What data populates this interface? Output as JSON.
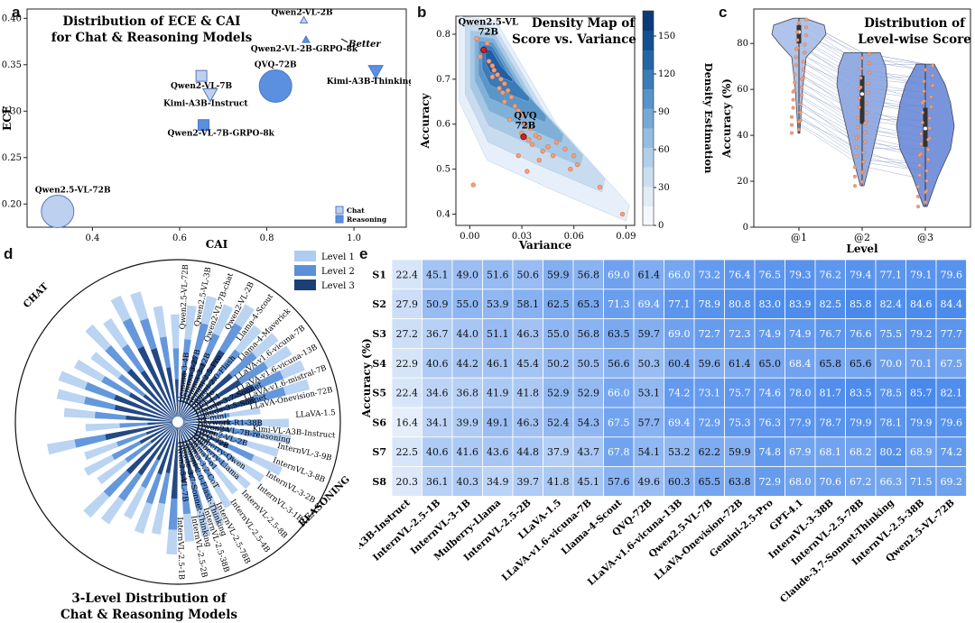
{
  "panel_labels": {
    "a": "a",
    "b": "b",
    "c": "c",
    "d": "d",
    "e": "e"
  },
  "chart_data": [
    {
      "id": "a",
      "type": "scatter",
      "title": "Distribution of ECE & CAI",
      "subtitle": "for Chat & Reasoning Models",
      "xlabel": "CAI",
      "ylabel": "ECE",
      "xlim": [
        0.25,
        1.12
      ],
      "ylim": [
        0.175,
        0.41
      ],
      "xticks": [
        0.4,
        0.6,
        0.8,
        1.0
      ],
      "xtick_labels": [
        "0.4",
        "0.6",
        "0.8",
        "1.0"
      ],
      "yticks": [
        0.2,
        0.25,
        0.3,
        0.35,
        0.4
      ],
      "ytick_labels": [
        "0.20",
        "0.25",
        "0.30",
        "0.35",
        "0.40"
      ],
      "annotation": "Better",
      "legend": [
        "Chat",
        "Reasoning"
      ],
      "points": [
        {
          "name": "Qwen2-VL-2B",
          "x": 0.885,
          "y": 0.398,
          "type": "chat",
          "shape": "triangle-up",
          "size": 4
        },
        {
          "name": "Qwen2-VL-2B-GRPO-8k",
          "x": 0.89,
          "y": 0.377,
          "type": "reasoning",
          "shape": "triangle-up",
          "size": 4
        },
        {
          "name": "Qwen2-VL-7B",
          "x": 0.65,
          "y": 0.338,
          "type": "chat",
          "shape": "square",
          "size": 6
        },
        {
          "name": "Kimi-A3B-Instruct",
          "x": 0.67,
          "y": 0.318,
          "type": "chat",
          "shape": "triangle-down",
          "size": 8
        },
        {
          "name": "QVQ-72B",
          "x": 0.82,
          "y": 0.327,
          "type": "reasoning",
          "shape": "circle",
          "size": 18
        },
        {
          "name": "Kimi-A3B-Thinking",
          "x": 1.05,
          "y": 0.343,
          "type": "reasoning",
          "shape": "triangle-down",
          "size": 8
        },
        {
          "name": "Qwen2-VL-7B-GRPO-8k",
          "x": 0.655,
          "y": 0.285,
          "type": "reasoning",
          "shape": "square",
          "size": 6
        },
        {
          "name": "Qwen2.5-VL-72B",
          "x": 0.32,
          "y": 0.192,
          "type": "chat",
          "shape": "circle",
          "size": 18
        }
      ]
    },
    {
      "id": "b",
      "type": "heatmap",
      "title": "Density Map of",
      "subtitle": "Score vs. Variance",
      "xlabel": "Variance",
      "ylabel": "Accuracy",
      "colorbar_label": "Density Estimation",
      "xlim": [
        -0.008,
        0.095
      ],
      "ylim": [
        0.375,
        0.84
      ],
      "xticks": [
        0,
        0.03,
        0.06,
        0.09
      ],
      "xtick_labels": [
        "0.00",
        "0.03",
        "0.06",
        "0.09"
      ],
      "yticks": [
        0.4,
        0.5,
        0.6,
        0.7,
        0.8
      ],
      "ytick_labels": [
        "0.4",
        "0.5",
        "0.6",
        "0.7",
        "0.8"
      ],
      "colorbar_ticks": [
        0,
        30,
        60,
        90,
        120,
        150
      ],
      "colorbar_tick_labels": [
        "0",
        "30",
        "60",
        "90",
        "120",
        "150"
      ],
      "highlights": [
        {
          "name": "Qwen2.5-VL 72B",
          "line1": "Qwen2.5-VL",
          "line2": "72B",
          "x": 0.008,
          "y": 0.765
        },
        {
          "name": "QVQ 72B",
          "line1": "QVQ",
          "line2": "72B",
          "x": 0.031,
          "y": 0.572
        }
      ],
      "points": [
        {
          "x": 0.004,
          "y": 0.79
        },
        {
          "x": 0.006,
          "y": 0.75
        },
        {
          "x": 0.008,
          "y": 0.765
        },
        {
          "x": 0.011,
          "y": 0.74
        },
        {
          "x": 0.013,
          "y": 0.73
        },
        {
          "x": 0.014,
          "y": 0.72
        },
        {
          "x": 0.016,
          "y": 0.71
        },
        {
          "x": 0.013,
          "y": 0.705
        },
        {
          "x": 0.018,
          "y": 0.7
        },
        {
          "x": 0.02,
          "y": 0.69
        },
        {
          "x": 0.017,
          "y": 0.68
        },
        {
          "x": 0.022,
          "y": 0.675
        },
        {
          "x": 0.024,
          "y": 0.66
        },
        {
          "x": 0.02,
          "y": 0.65
        },
        {
          "x": 0.026,
          "y": 0.64
        },
        {
          "x": 0.028,
          "y": 0.63
        },
        {
          "x": 0.03,
          "y": 0.62
        },
        {
          "x": 0.023,
          "y": 0.61
        },
        {
          "x": 0.032,
          "y": 0.6
        },
        {
          "x": 0.035,
          "y": 0.59
        },
        {
          "x": 0.03,
          "y": 0.58
        },
        {
          "x": 0.038,
          "y": 0.575
        },
        {
          "x": 0.04,
          "y": 0.57
        },
        {
          "x": 0.036,
          "y": 0.555
        },
        {
          "x": 0.045,
          "y": 0.55
        },
        {
          "x": 0.05,
          "y": 0.56
        },
        {
          "x": 0.042,
          "y": 0.54
        },
        {
          "x": 0.048,
          "y": 0.53
        },
        {
          "x": 0.04,
          "y": 0.52
        },
        {
          "x": 0.06,
          "y": 0.53
        },
        {
          "x": 0.058,
          "y": 0.5
        },
        {
          "x": 0.033,
          "y": 0.495
        },
        {
          "x": 0.075,
          "y": 0.46
        },
        {
          "x": 0.088,
          "y": 0.4
        },
        {
          "x": 0.002,
          "y": 0.465
        },
        {
          "x": 0.055,
          "y": 0.545
        },
        {
          "x": 0.062,
          "y": 0.51
        },
        {
          "x": 0.028,
          "y": 0.53
        },
        {
          "x": 0.01,
          "y": 0.78
        },
        {
          "x": 0.019,
          "y": 0.67
        },
        {
          "x": 0.034,
          "y": 0.565
        }
      ]
    },
    {
      "id": "c",
      "type": "violin",
      "title": "Distribution of",
      "subtitle": "Level-wise Score",
      "xlabel": "Level",
      "ylabel": "Accuracy (%)",
      "ylim": [
        0,
        95
      ],
      "yticks": [
        0,
        20,
        40,
        60,
        80
      ],
      "ytick_labels": [
        "0",
        "20",
        "40",
        "60",
        "80"
      ],
      "categories": [
        "@1",
        "@2",
        "@3"
      ],
      "ranges": [
        [
          41,
          91
        ],
        [
          18,
          76
        ],
        [
          9,
          71
        ]
      ],
      "medians": [
        85,
        58,
        43
      ],
      "q1": [
        80,
        45,
        35
      ],
      "q3": [
        88,
        66,
        52
      ]
    },
    {
      "id": "d",
      "type": "bar",
      "subtype": "radial",
      "title": "3-Level Distribution of",
      "subtitle": "Chat & Reasoning Models",
      "group_labels": [
        "CHAT",
        "REASONING"
      ],
      "legend": [
        "Level 1",
        "Level 2",
        "Level 3"
      ],
      "categories": [
        "Gemma-3-4B",
        "Gemma-3-27B",
        "Gemma-3-12B",
        "Gemini-2.5-Pro",
        "Gemini-2.0-Flash",
        "GPT-4o",
        "GPT-4.1",
        "Claude-3.7-Sonnet",
        "Claude-3.5-Sonnet",
        "o4-mini",
        "Skywork-R1-38B",
        "Qwen2-VL-7B-reasoning",
        "Qwen2-VL-2B",
        "QVQ-72B",
        "Mulberry-Qwen",
        "Mulberry-Llama",
        "LlamaV-o1",
        "Llama-3.2-CoT",
        "Gemini-2.0-Flash-Thinking",
        "Claude-3.7-Sonnet-Thinking",
        "Qwen2.5-VL-7B",
        "Qwen2.5-VL-72B",
        "Qwen2.5-VL-3B",
        "Qwen2-VL-7B-chat",
        "Qwen2-VL-2B",
        "Llama-4-Scout",
        "Llama-4-Maverick",
        "LLaVA-v1.6-vicuna-7B",
        "LLaVA-v1.6-vicuna-13B",
        "LLaVA-v1.6-mistral-7B",
        "LLaVA-Onevision-72B",
        "LLaVA-1.5",
        "Kimi-VL-A3B-Instruct",
        "InternVL-3-9B",
        "InternVL-3-8B",
        "InternVL-3-2B",
        "InternVL-3-1B",
        "InternVL-2.5-8B",
        "InternVL-2.5-4B",
        "InternVL-2.5-78B",
        "InternVL-2.5-38B",
        "InternVL-2.5-2B",
        "InternVL-2.5-1B"
      ],
      "level1": [
        0.72,
        0.8,
        0.78,
        0.84,
        0.76,
        0.8,
        0.82,
        0.85,
        0.84,
        0.5,
        0.68,
        0.7,
        0.64,
        0.7,
        0.62,
        0.58,
        0.55,
        0.6,
        0.68,
        0.72,
        0.74,
        0.82,
        0.7,
        0.72,
        0.66,
        0.76,
        0.8,
        0.6,
        0.64,
        0.6,
        0.82,
        0.56,
        0.7,
        0.76,
        0.78,
        0.72,
        0.66,
        0.8,
        0.76,
        0.86,
        0.84,
        0.72,
        0.66
      ],
      "level2": [
        0.5,
        0.62,
        0.58,
        0.7,
        0.56,
        0.62,
        0.64,
        0.7,
        0.68,
        0.3,
        0.5,
        0.5,
        0.42,
        0.5,
        0.4,
        0.38,
        0.34,
        0.4,
        0.5,
        0.54,
        0.56,
        0.66,
        0.5,
        0.52,
        0.44,
        0.58,
        0.62,
        0.38,
        0.44,
        0.38,
        0.64,
        0.34,
        0.5,
        0.58,
        0.6,
        0.52,
        0.44,
        0.62,
        0.56,
        0.7,
        0.66,
        0.52,
        0.44
      ],
      "level3": [
        0.3,
        0.4,
        0.38,
        0.5,
        0.34,
        0.42,
        0.44,
        0.5,
        0.48,
        0.15,
        0.3,
        0.3,
        0.22,
        0.32,
        0.2,
        0.18,
        0.16,
        0.2,
        0.3,
        0.34,
        0.36,
        0.46,
        0.3,
        0.32,
        0.24,
        0.38,
        0.42,
        0.18,
        0.24,
        0.18,
        0.44,
        0.16,
        0.3,
        0.38,
        0.4,
        0.32,
        0.24,
        0.42,
        0.36,
        0.5,
        0.46,
        0.32,
        0.24
      ]
    },
    {
      "id": "e",
      "type": "table",
      "ylabel": "Accuracy (%)",
      "rows": [
        "S1",
        "S2",
        "S3",
        "S4",
        "S5",
        "S6",
        "S7",
        "S8"
      ],
      "columns": [
        "Kimi-VL-A3B-Instruct",
        "InternVL-2.5-1B",
        "InternVL-3-1B",
        "Mulberry-Llama",
        "InternVL-2.5-2B",
        "LLaVA-1.5",
        "LLaVA-v1.6-vicuna-7B",
        "Llama-4-Scout",
        "QVQ-72B",
        "LLaVA-v1.6-vicuna-13B",
        "Qwen2.5-VL-7B",
        "LLaVA-Onevision-72B",
        "Gemini-2.5-Pro",
        "GPT-4.1",
        "InternVL-3-38B",
        "InternVL-2.5-78B",
        "Claude-3.7-Sonnet-Thinking",
        "InternVL-2.5-38B",
        "Qwen2.5-VL-72B"
      ],
      "values": [
        [
          22.4,
          45.1,
          49.0,
          51.6,
          50.6,
          59.9,
          56.8,
          69.0,
          61.4,
          66.0,
          73.2,
          76.4,
          76.5,
          79.3,
          76.2,
          79.4,
          77.1,
          79.1,
          79.6
        ],
        [
          27.9,
          50.9,
          55.0,
          53.9,
          58.1,
          62.5,
          65.3,
          71.3,
          69.4,
          77.1,
          78.9,
          80.8,
          83.0,
          83.9,
          82.5,
          85.8,
          82.4,
          84.6,
          84.4
        ],
        [
          27.2,
          36.7,
          44.0,
          51.1,
          46.3,
          55.0,
          56.8,
          63.5,
          59.7,
          69.0,
          72.7,
          72.3,
          74.9,
          74.9,
          76.7,
          76.6,
          75.5,
          79.2,
          77.7
        ],
        [
          22.9,
          40.6,
          44.2,
          46.1,
          45.4,
          50.2,
          50.5,
          56.6,
          50.3,
          60.4,
          59.6,
          61.4,
          65.0,
          68.4,
          65.8,
          65.6,
          70.0,
          70.1,
          67.5
        ],
        [
          22.4,
          34.6,
          36.8,
          41.9,
          41.8,
          52.9,
          52.9,
          66.0,
          53.1,
          74.2,
          73.1,
          75.7,
          74.6,
          78.0,
          81.7,
          83.5,
          78.5,
          85.7,
          82.1
        ],
        [
          16.4,
          34.1,
          39.9,
          49.1,
          46.3,
          52.4,
          54.3,
          67.5,
          57.7,
          69.4,
          72.9,
          75.3,
          76.3,
          77.9,
          78.7,
          79.9,
          78.1,
          79.9,
          79.6
        ],
        [
          22.5,
          40.6,
          41.6,
          43.6,
          44.8,
          37.9,
          43.7,
          67.8,
          54.1,
          53.2,
          62.2,
          59.9,
          74.8,
          67.9,
          68.1,
          68.2,
          80.2,
          68.9,
          74.2
        ],
        [
          20.3,
          36.1,
          40.3,
          34.9,
          39.7,
          41.8,
          45.1,
          57.6,
          49.6,
          60.3,
          65.5,
          63.8,
          72.9,
          68.0,
          70.6,
          67.2,
          66.3,
          71.5,
          69.2
        ]
      ]
    }
  ]
}
